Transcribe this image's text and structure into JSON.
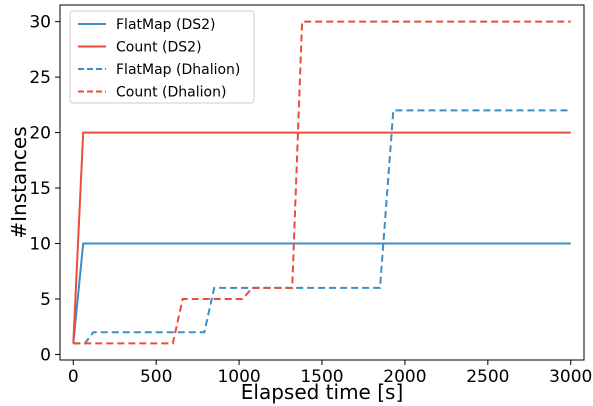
{
  "chart_data": {
    "type": "line",
    "xlabel": "Elapsed time [s]",
    "ylabel": "#Instances",
    "xlim": [
      -80,
      3080
    ],
    "ylim": [
      -0.5,
      31.5
    ],
    "xticks": [
      0,
      500,
      1000,
      1500,
      2000,
      2500,
      3000
    ],
    "yticks": [
      0,
      5,
      10,
      15,
      20,
      25,
      30
    ],
    "grid": false,
    "legend_position": "top-left",
    "series": [
      {
        "name": "FlatMap (DS2)",
        "color": "#3b8fc4",
        "dash": "solid",
        "x": [
          0,
          60,
          3000
        ],
        "y": [
          1,
          10,
          10
        ]
      },
      {
        "name": "Count (DS2)",
        "color": "#ea4d3a",
        "dash": "solid",
        "x": [
          0,
          60,
          3000
        ],
        "y": [
          1,
          20,
          20
        ]
      },
      {
        "name": "FlatMap (Dhalion)",
        "color": "#3b8fc4",
        "dash": "dashed",
        "x": [
          0,
          70,
          120,
          790,
          850,
          1050,
          1070,
          1850,
          1930,
          3000
        ],
        "y": [
          1,
          1,
          2,
          2,
          6,
          6,
          6,
          6,
          22,
          22
        ]
      },
      {
        "name": "Count (Dhalion)",
        "color": "#ea4d3a",
        "dash": "dashed",
        "x": [
          0,
          600,
          660,
          1020,
          1080,
          1320,
          1380,
          3000
        ],
        "y": [
          1,
          1,
          5,
          5,
          6,
          6,
          30,
          30
        ]
      }
    ]
  }
}
